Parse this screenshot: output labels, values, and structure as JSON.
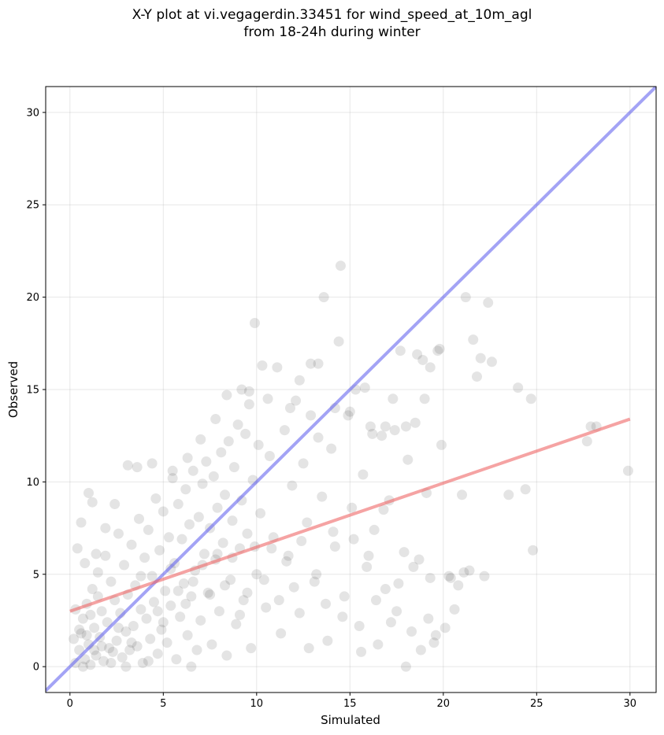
{
  "chart_data": {
    "type": "scatter",
    "title_lines": [
      "X-Y plot at vi.vegagerdin.33451 for wind_speed_at_10m_agl",
      "from 18-24h during winter"
    ],
    "xlabel": "Simulated",
    "ylabel": "Observed",
    "xlim": [
      -1.3,
      31.4
    ],
    "ylim": [
      -1.4,
      31.4
    ],
    "xticks": [
      0,
      5,
      10,
      15,
      20,
      25,
      30
    ],
    "yticks": [
      0,
      5,
      10,
      15,
      20,
      25,
      30
    ],
    "grid": true,
    "colors": {
      "points": "#222222",
      "identity_line": "#6666ee",
      "regression_line": "#ee6666"
    },
    "lines": [
      {
        "kind": "identity",
        "x": [
          -1.3,
          31.4
        ],
        "y": [
          -1.3,
          31.4
        ]
      },
      {
        "kind": "regression",
        "x": [
          0,
          30
        ],
        "y": [
          3.0,
          13.4
        ]
      }
    ],
    "points": [
      [
        0.3,
        0.2
      ],
      [
        0.5,
        0.9
      ],
      [
        0.6,
        1.8
      ],
      [
        0.7,
        2.6
      ],
      [
        0.8,
        0.4
      ],
      [
        0.9,
        3.4
      ],
      [
        1.0,
        1.2
      ],
      [
        1.1,
        0.1
      ],
      [
        1.2,
        4.2
      ],
      [
        1.3,
        2.1
      ],
      [
        1.4,
        0.6
      ],
      [
        1.5,
        5.1
      ],
      [
        1.6,
        1.6
      ],
      [
        1.7,
        3.0
      ],
      [
        1.8,
        0.3
      ],
      [
        1.9,
        6.0
      ],
      [
        2.0,
        2.4
      ],
      [
        2.1,
        1.0
      ],
      [
        2.2,
        4.6
      ],
      [
        2.3,
        0.8
      ],
      [
        2.4,
        3.6
      ],
      [
        2.5,
        1.4
      ],
      [
        2.6,
        7.2
      ],
      [
        2.7,
        2.9
      ],
      [
        2.8,
        0.5
      ],
      [
        2.9,
        5.5
      ],
      [
        3.0,
        1.9
      ],
      [
        3.1,
        3.9
      ],
      [
        3.2,
        0.9
      ],
      [
        3.3,
        6.6
      ],
      [
        3.4,
        2.2
      ],
      [
        3.5,
        4.4
      ],
      [
        3.6,
        1.1
      ],
      [
        3.7,
        8.0
      ],
      [
        3.8,
        3.1
      ],
      [
        3.9,
        0.2
      ],
      [
        4.0,
        5.9
      ],
      [
        4.1,
        2.6
      ],
      [
        4.2,
        7.4
      ],
      [
        4.3,
        1.5
      ],
      [
        4.4,
        4.9
      ],
      [
        4.5,
        3.5
      ],
      [
        4.6,
        9.1
      ],
      [
        4.7,
        0.7
      ],
      [
        4.8,
        6.3
      ],
      [
        4.9,
        2.0
      ],
      [
        5.0,
        8.4
      ],
      [
        5.1,
        4.1
      ],
      [
        5.2,
        1.3
      ],
      [
        5.3,
        7.0
      ],
      [
        5.4,
        3.3
      ],
      [
        5.5,
        10.2
      ],
      [
        5.6,
        5.6
      ],
      [
        5.7,
        0.4
      ],
      [
        5.8,
        8.8
      ],
      [
        5.9,
        2.7
      ],
      [
        6.0,
        6.9
      ],
      [
        6.1,
        4.5
      ],
      [
        6.2,
        9.6
      ],
      [
        6.3,
        1.7
      ],
      [
        6.4,
        7.7
      ],
      [
        6.5,
        3.8
      ],
      [
        6.6,
        10.6
      ],
      [
        6.7,
        5.2
      ],
      [
        6.8,
        0.9
      ],
      [
        6.9,
        8.1
      ],
      [
        7.0,
        2.5
      ],
      [
        7.1,
        9.9
      ],
      [
        7.2,
        6.1
      ],
      [
        7.3,
        11.1
      ],
      [
        7.4,
        4.0
      ],
      [
        7.5,
        7.5
      ],
      [
        7.6,
        1.2
      ],
      [
        7.7,
        10.3
      ],
      [
        7.8,
        5.8
      ],
      [
        7.9,
        8.6
      ],
      [
        8.0,
        3.0
      ],
      [
        8.1,
        11.6
      ],
      [
        8.2,
        6.7
      ],
      [
        8.3,
        9.3
      ],
      [
        8.4,
        0.6
      ],
      [
        8.5,
        12.2
      ],
      [
        8.6,
        4.7
      ],
      [
        8.7,
        7.9
      ],
      [
        8.8,
        10.8
      ],
      [
        8.9,
        2.3
      ],
      [
        9.0,
        13.1
      ],
      [
        9.1,
        6.4
      ],
      [
        9.2,
        9.0
      ],
      [
        9.3,
        3.6
      ],
      [
        9.4,
        12.6
      ],
      [
        9.5,
        7.2
      ],
      [
        9.6,
        14.2
      ],
      [
        9.7,
        1.0
      ],
      [
        9.8,
        10.1
      ],
      [
        9.9,
        18.6
      ],
      [
        10.0,
        5.0
      ],
      [
        10.1,
        12.0
      ],
      [
        10.2,
        8.3
      ],
      [
        10.3,
        16.3
      ],
      [
        10.5,
        3.2
      ],
      [
        10.7,
        11.4
      ],
      [
        10.9,
        7.0
      ],
      [
        11.1,
        16.2
      ],
      [
        11.3,
        1.8
      ],
      [
        11.5,
        12.8
      ],
      [
        11.7,
        6.0
      ],
      [
        11.9,
        9.8
      ],
      [
        12.1,
        14.4
      ],
      [
        12.3,
        2.9
      ],
      [
        12.5,
        11.0
      ],
      [
        12.7,
        7.8
      ],
      [
        12.9,
        16.4
      ],
      [
        13.1,
        4.6
      ],
      [
        13.3,
        12.4
      ],
      [
        13.5,
        9.2
      ],
      [
        13.6,
        20.0
      ],
      [
        13.8,
        1.4
      ],
      [
        14.0,
        11.8
      ],
      [
        14.2,
        6.5
      ],
      [
        14.4,
        17.6
      ],
      [
        14.5,
        21.7
      ],
      [
        14.7,
        3.8
      ],
      [
        14.9,
        13.6
      ],
      [
        15.1,
        8.6
      ],
      [
        15.3,
        15.0
      ],
      [
        15.5,
        2.2
      ],
      [
        15.7,
        10.4
      ],
      [
        15.9,
        5.4
      ],
      [
        16.1,
        13.0
      ],
      [
        16.3,
        7.4
      ],
      [
        16.5,
        1.2
      ],
      [
        16.7,
        12.5
      ],
      [
        16.9,
        4.2
      ],
      [
        17.1,
        9.0
      ],
      [
        17.3,
        14.5
      ],
      [
        17.5,
        3.0
      ],
      [
        17.7,
        17.1
      ],
      [
        17.9,
        6.2
      ],
      [
        18.1,
        11.2
      ],
      [
        18.3,
        1.9
      ],
      [
        18.5,
        13.2
      ],
      [
        18.7,
        5.8
      ],
      [
        18.9,
        16.6
      ],
      [
        19.1,
        9.4
      ],
      [
        19.3,
        4.8
      ],
      [
        19.5,
        1.3
      ],
      [
        19.7,
        17.1
      ],
      [
        19.9,
        12.0
      ],
      [
        20.1,
        2.1
      ],
      [
        20.4,
        4.8
      ],
      [
        20.6,
        3.1
      ],
      [
        21.0,
        9.3
      ],
      [
        21.2,
        20.0
      ],
      [
        21.4,
        5.2
      ],
      [
        21.6,
        17.7
      ],
      [
        21.8,
        15.7
      ],
      [
        22.0,
        16.7
      ],
      [
        22.2,
        4.9
      ],
      [
        22.4,
        19.7
      ],
      [
        22.6,
        16.5
      ],
      [
        23.5,
        9.3
      ],
      [
        24.0,
        15.1
      ],
      [
        24.4,
        9.6
      ],
      [
        24.7,
        14.5
      ],
      [
        24.8,
        6.3
      ],
      [
        27.7,
        12.2
      ],
      [
        27.9,
        13.0
      ],
      [
        28.2,
        13.0
      ],
      [
        29.9,
        10.6
      ],
      [
        0.4,
        6.4
      ],
      [
        0.6,
        7.8
      ],
      [
        0.8,
        5.6
      ],
      [
        1.0,
        9.4
      ],
      [
        1.2,
        8.9
      ],
      [
        1.4,
        6.1
      ],
      [
        1.9,
        7.5
      ],
      [
        2.4,
        8.8
      ],
      [
        3.1,
        10.9
      ],
      [
        3.6,
        10.8
      ],
      [
        4.4,
        11.0
      ],
      [
        5.5,
        10.6
      ],
      [
        6.3,
        11.3
      ],
      [
        7.0,
        12.3
      ],
      [
        7.8,
        13.4
      ],
      [
        8.4,
        14.7
      ],
      [
        9.2,
        15.0
      ],
      [
        9.6,
        14.9
      ],
      [
        10.6,
        14.5
      ],
      [
        11.8,
        14.0
      ],
      [
        12.3,
        15.5
      ],
      [
        12.9,
        13.6
      ],
      [
        13.3,
        16.4
      ],
      [
        14.2,
        14.0
      ],
      [
        15.0,
        13.8
      ],
      [
        15.8,
        15.1
      ],
      [
        16.2,
        12.6
      ],
      [
        16.9,
        13.0
      ],
      [
        17.4,
        12.8
      ],
      [
        18.0,
        13.0
      ],
      [
        18.6,
        16.9
      ],
      [
        19.0,
        14.5
      ],
      [
        19.3,
        16.2
      ],
      [
        19.8,
        17.2
      ],
      [
        20.3,
        4.9
      ],
      [
        20.8,
        4.4
      ],
      [
        21.1,
        5.1
      ],
      [
        0.2,
        1.5
      ],
      [
        0.3,
        3.1
      ],
      [
        0.5,
        2.0
      ],
      [
        0.7,
        0.0
      ],
      [
        0.9,
        1.7
      ],
      [
        1.1,
        2.8
      ],
      [
        1.3,
        0.9
      ],
      [
        1.5,
        3.8
      ],
      [
        1.7,
        1.1
      ],
      [
        2.2,
        0.2
      ],
      [
        2.6,
        2.1
      ],
      [
        3.3,
        1.3
      ],
      [
        3.8,
        4.9
      ],
      [
        4.2,
        0.3
      ],
      [
        4.7,
        3.0
      ],
      [
        5.0,
        2.4
      ],
      [
        5.4,
        5.3
      ],
      [
        5.8,
        4.1
      ],
      [
        6.2,
        3.4
      ],
      [
        6.6,
        4.6
      ],
      [
        7.1,
        5.5
      ],
      [
        7.5,
        3.9
      ],
      [
        7.9,
        6.1
      ],
      [
        8.3,
        4.4
      ],
      [
        8.7,
        5.9
      ],
      [
        9.1,
        2.8
      ],
      [
        9.5,
        4.0
      ],
      [
        9.9,
        6.5
      ],
      [
        10.4,
        4.7
      ],
      [
        10.8,
        6.4
      ],
      [
        11.2,
        3.6
      ],
      [
        11.6,
        5.7
      ],
      [
        12.0,
        4.3
      ],
      [
        12.4,
        6.8
      ],
      [
        12.8,
        1.0
      ],
      [
        13.2,
        5.0
      ],
      [
        13.7,
        3.4
      ],
      [
        14.1,
        7.3
      ],
      [
        14.6,
        2.7
      ],
      [
        15.2,
        6.9
      ],
      [
        15.6,
        0.8
      ],
      [
        16.0,
        6.0
      ],
      [
        16.4,
        3.6
      ],
      [
        16.8,
        8.5
      ],
      [
        17.2,
        2.4
      ],
      [
        17.6,
        4.5
      ],
      [
        18.0,
        0.0
      ],
      [
        18.4,
        5.4
      ],
      [
        18.8,
        0.9
      ],
      [
        19.2,
        2.6
      ],
      [
        19.6,
        1.7
      ],
      [
        3.0,
        0.0
      ],
      [
        6.5,
        0.0
      ]
    ]
  }
}
